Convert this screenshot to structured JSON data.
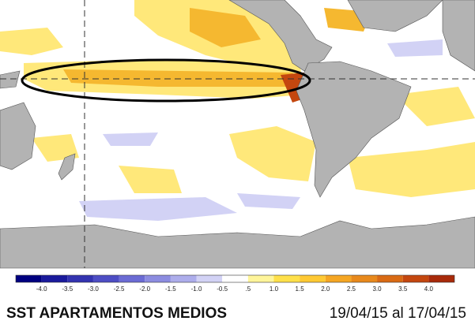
{
  "colorbar": {
    "labels": [
      "-4.0",
      "-3.5",
      "-3.0",
      "-2.5",
      "-2.0",
      "-1.5",
      "-1.0",
      "-0.5",
      ".5",
      "1.0",
      "1.5",
      "2.0",
      "2.5",
      "3.0",
      "3.5",
      "4.0"
    ],
    "colors": [
      "#000080",
      "#1a1a9c",
      "#3333b0",
      "#4d4dc4",
      "#6b6bd4",
      "#8c8ce0",
      "#adadeb",
      "#d2d2f5",
      "#ffffff",
      "#fff59a",
      "#ffe04a",
      "#ffc933",
      "#f5a623",
      "#e8891c",
      "#d96a14",
      "#c4470f",
      "#a82a0a"
    ]
  },
  "caption": {
    "title": "SST APARTAMENTOS MEDIOS",
    "dates": "19/04/15 al 17/04/15"
  }
}
